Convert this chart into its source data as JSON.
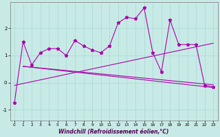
{
  "xlabel": "Windchill (Refroidissement éolien,°C)",
  "bg_color": "#c8eae6",
  "grid_color": "#a8d8d0",
  "line_color": "#aa00aa",
  "xlim": [
    -0.5,
    23.5
  ],
  "ylim": [
    -1.4,
    2.95
  ],
  "yticks": [
    -1,
    0,
    1,
    2
  ],
  "xticks": [
    0,
    1,
    2,
    3,
    4,
    5,
    6,
    7,
    8,
    9,
    10,
    11,
    12,
    13,
    14,
    15,
    16,
    17,
    18,
    19,
    20,
    21,
    22,
    23
  ],
  "line1_x": [
    0,
    1,
    2,
    3,
    4,
    5,
    6,
    7,
    8,
    9,
    10,
    11,
    12,
    13,
    14,
    15,
    16,
    17,
    18,
    19,
    20,
    21,
    22,
    23
  ],
  "line1_y": [
    -0.75,
    1.5,
    0.65,
    1.1,
    1.25,
    1.25,
    1.0,
    1.55,
    1.35,
    1.2,
    1.1,
    1.35,
    2.2,
    2.4,
    2.35,
    2.75,
    1.1,
    0.4,
    2.3,
    1.4,
    1.4,
    1.4,
    -0.1,
    -0.15
  ],
  "line2_x": [
    0,
    23
  ],
  "line2_y": [
    -0.1,
    1.45
  ],
  "line3_x": [
    1,
    23
  ],
  "line3_y": [
    0.6,
    -0.08
  ],
  "line4_x": [
    1,
    23
  ],
  "line4_y": [
    0.6,
    -0.18
  ]
}
